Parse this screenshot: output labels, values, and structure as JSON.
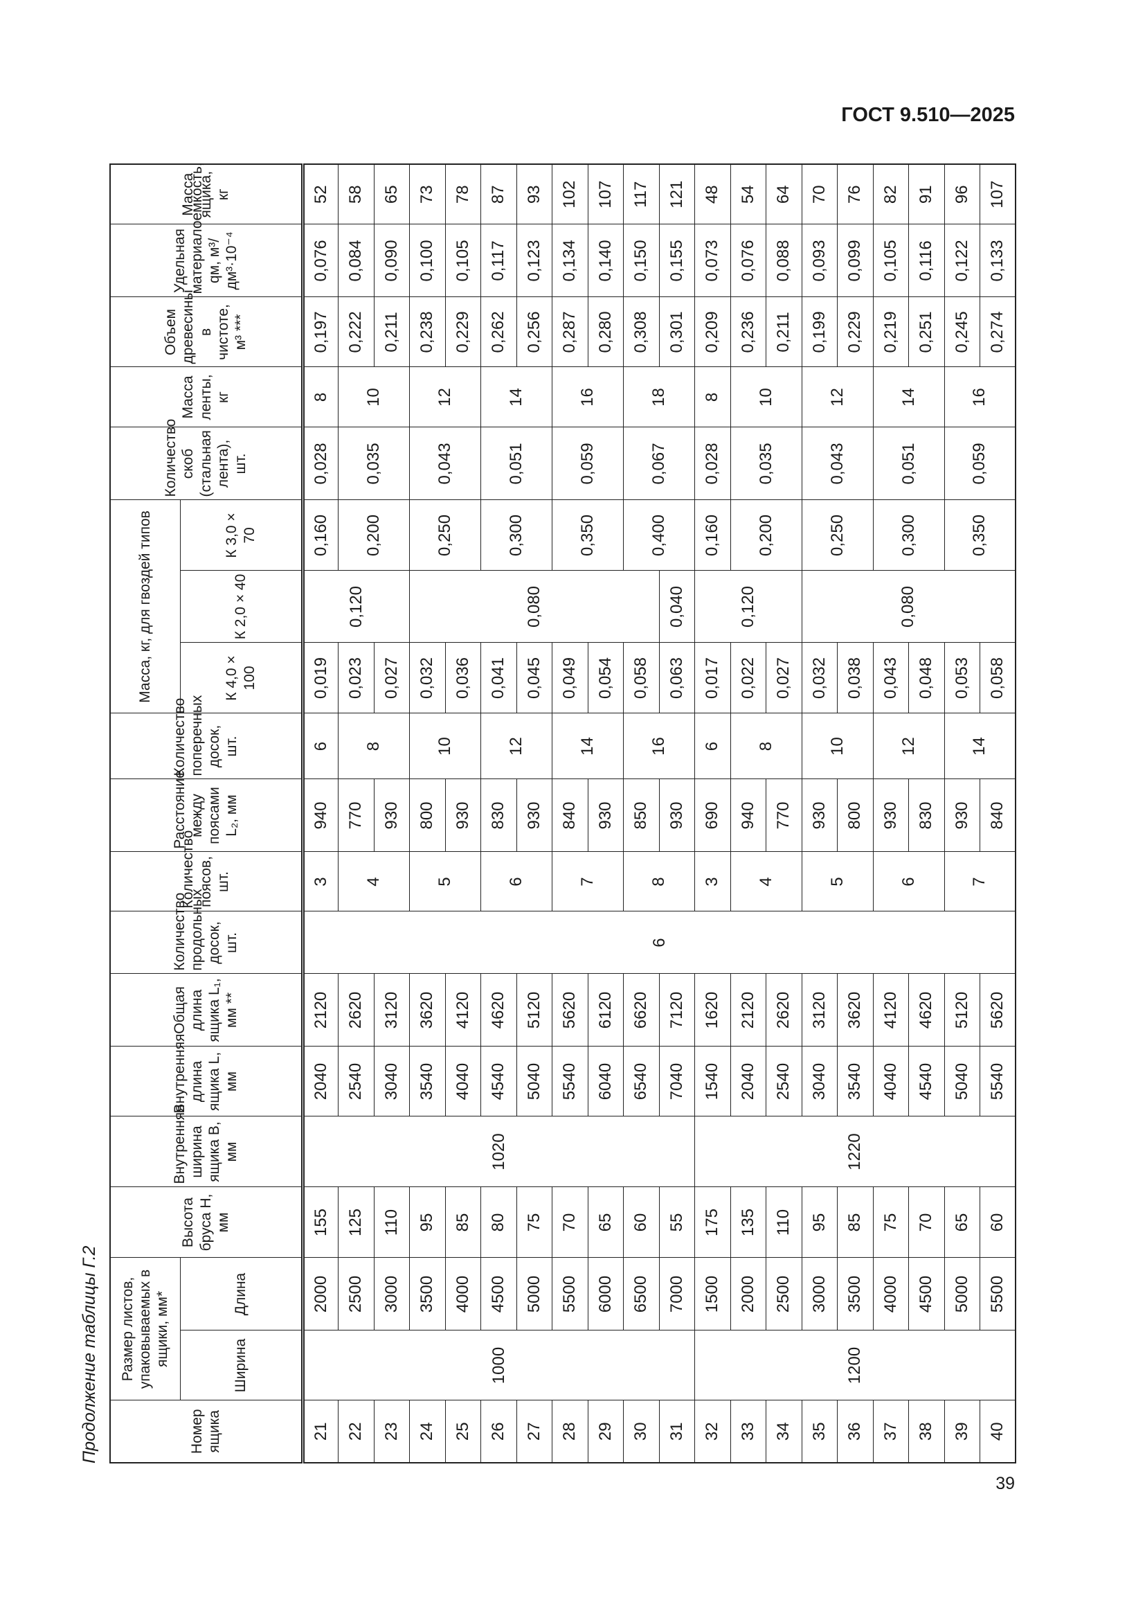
{
  "header": {
    "title": "ГОСТ 9.510—2025"
  },
  "caption": "Продолжение таблицы Г.2",
  "table": {
    "head": [
      [
        "Номер ящика",
        "Размер листов, упаковываемых в ящики, мм*",
        "Высота бруса H, мм",
        "Внутренняя ширина ящика B, мм",
        "Внутренняя длина ящика L, мм",
        "Общая длина ящика L₁, мм **",
        "Количество продольных досок, шт.",
        "Количество поясов, шт.",
        "Расстояние между поясами L₂, мм",
        "Количество поперечных досок, шт.",
        "Масса, кг, для гвоздей типов",
        "Количество скоб (стальная лента), шт.",
        "Масса ленты, кг",
        "Объем древесины в чистоте, м³ ***",
        "Удельная материалоемкость, qм, м³/дм³·10⁻⁴",
        "Масса ящика, кг"
      ],
      [
        "Ширина",
        "Длина",
        "К 4,0 × 100",
        "К 2,0 × 40",
        "К 3,0 × 70"
      ]
    ],
    "rows": [
      [
        21,
        1000,
        2000,
        155,
        1020,
        2040,
        2120,
        6,
        3,
        940,
        6,
        "0,019",
        "0,120",
        "0,160",
        "0,028",
        8,
        "0,197",
        "0,076",
        52
      ],
      [
        22,
        null,
        2500,
        125,
        null,
        2540,
        2620,
        null,
        4,
        770,
        8,
        "0,023",
        null,
        "0,200",
        "0,035",
        10,
        "0,222",
        "0,084",
        58
      ],
      [
        23,
        null,
        3000,
        110,
        null,
        3040,
        3120,
        null,
        null,
        930,
        null,
        "0,027",
        null,
        null,
        null,
        null,
        "0,211",
        "0,090",
        65
      ],
      [
        24,
        null,
        3500,
        95,
        null,
        3540,
        3620,
        null,
        5,
        800,
        10,
        "0,032",
        "0,080",
        "0,250",
        "0,043",
        12,
        "0,238",
        "0,100",
        73
      ],
      [
        25,
        null,
        4000,
        85,
        null,
        4040,
        4120,
        null,
        null,
        930,
        null,
        "0,036",
        null,
        null,
        null,
        null,
        "0,229",
        "0,105",
        78
      ],
      [
        26,
        null,
        4500,
        80,
        null,
        4540,
        4620,
        null,
        6,
        830,
        12,
        "0,041",
        null,
        "0,300",
        "0,051",
        14,
        "0,262",
        "0,117",
        87
      ],
      [
        27,
        null,
        5000,
        75,
        null,
        5040,
        5120,
        null,
        null,
        930,
        null,
        "0,045",
        null,
        null,
        null,
        null,
        "0,256",
        "0,123",
        93
      ],
      [
        28,
        null,
        5500,
        70,
        null,
        5540,
        5620,
        null,
        7,
        840,
        14,
        "0,049",
        null,
        "0,350",
        "0,059",
        16,
        "0,287",
        "0,134",
        102
      ],
      [
        29,
        null,
        6000,
        65,
        null,
        6040,
        6120,
        null,
        null,
        930,
        null,
        "0,054",
        null,
        null,
        null,
        null,
        "0,280",
        "0,140",
        107
      ],
      [
        30,
        null,
        6500,
        60,
        null,
        6540,
        6620,
        null,
        8,
        850,
        16,
        "0,058",
        null,
        "0,400",
        "0,067",
        18,
        "0,308",
        "0,150",
        117
      ],
      [
        31,
        null,
        7000,
        55,
        null,
        7040,
        7120,
        null,
        null,
        930,
        null,
        "0,063",
        "0,040",
        null,
        null,
        null,
        "0,301",
        "0,155",
        121
      ],
      [
        32,
        1200,
        1500,
        175,
        1220,
        1540,
        1620,
        null,
        3,
        690,
        6,
        "0,017",
        "0,120",
        "0,160",
        "0,028",
        8,
        "0,209",
        "0,073",
        48
      ],
      [
        33,
        null,
        2000,
        135,
        null,
        2040,
        2120,
        null,
        4,
        940,
        8,
        "0,022",
        null,
        "0,200",
        "0,035",
        10,
        "0,236",
        "0,076",
        54
      ],
      [
        34,
        null,
        2500,
        110,
        null,
        2540,
        2620,
        null,
        null,
        770,
        null,
        "0,027",
        null,
        null,
        null,
        null,
        "0,211",
        "0,088",
        64
      ],
      [
        35,
        null,
        3000,
        95,
        null,
        3040,
        3120,
        null,
        5,
        930,
        10,
        "0,032",
        "0,080",
        "0,250",
        "0,043",
        12,
        "0,199",
        "0,093",
        70
      ],
      [
        36,
        null,
        3500,
        85,
        null,
        3540,
        3620,
        null,
        null,
        800,
        null,
        "0,038",
        null,
        null,
        null,
        null,
        "0,229",
        "0,099",
        76
      ],
      [
        37,
        null,
        4000,
        75,
        null,
        4040,
        4120,
        null,
        6,
        930,
        12,
        "0,043",
        null,
        "0,300",
        "0,051",
        14,
        "0,219",
        "0,105",
        82
      ],
      [
        38,
        null,
        4500,
        70,
        null,
        4540,
        4620,
        null,
        null,
        830,
        null,
        "0,048",
        null,
        null,
        null,
        null,
        "0,251",
        "0,116",
        91
      ],
      [
        39,
        null,
        5000,
        65,
        null,
        5040,
        5120,
        null,
        7,
        930,
        14,
        "0,053",
        null,
        "0,350",
        "0,059",
        16,
        "0,245",
        "0,122",
        96
      ],
      [
        40,
        null,
        5500,
        60,
        null,
        5540,
        5620,
        null,
        null,
        840,
        null,
        "0,058",
        null,
        null,
        null,
        null,
        "0,274",
        "0,133",
        107
      ]
    ]
  },
  "footer": {
    "page_number": "39"
  }
}
